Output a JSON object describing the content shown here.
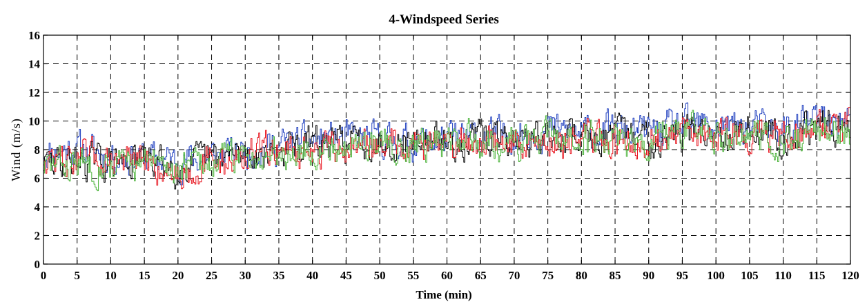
{
  "chart_data": {
    "type": "line",
    "title": "4-Windspeed Series",
    "xlabel": "Time (min)",
    "ylabel": "Wind (m/s)",
    "xlim": [
      0,
      120
    ],
    "ylim": [
      0,
      16
    ],
    "xticks": [
      0,
      5,
      10,
      15,
      20,
      25,
      30,
      35,
      40,
      45,
      50,
      55,
      60,
      65,
      70,
      75,
      80,
      85,
      90,
      95,
      100,
      105,
      110,
      115,
      120
    ],
    "yticks": [
      0,
      2,
      4,
      6,
      8,
      10,
      12,
      14,
      16
    ],
    "grid": true,
    "series": [
      {
        "color": "#1f3fbf",
        "x": [
          0,
          5,
          10,
          15,
          20,
          25,
          30,
          35,
          40,
          45,
          50,
          55,
          60,
          65,
          70,
          75,
          80,
          85,
          90,
          95,
          100,
          105,
          110,
          115,
          120
        ],
        "values": [
          7.9,
          8.1,
          7.6,
          7.4,
          7.2,
          7.5,
          7.9,
          8.3,
          8.6,
          8.8,
          8.7,
          8.5,
          8.7,
          8.9,
          9.1,
          9.4,
          9.2,
          9.3,
          9.2,
          9.6,
          9.7,
          9.5,
          9.4,
          10.1,
          10.0
        ]
      },
      {
        "color": "#000000",
        "x": [
          0,
          5,
          10,
          15,
          20,
          25,
          30,
          35,
          40,
          45,
          50,
          55,
          60,
          65,
          70,
          75,
          80,
          85,
          90,
          95,
          100,
          105,
          110,
          115,
          120
        ],
        "values": [
          7.0,
          7.2,
          7.1,
          7.3,
          6.8,
          7.3,
          7.7,
          7.9,
          8.4,
          8.5,
          8.6,
          8.7,
          8.5,
          8.8,
          8.7,
          8.8,
          9.0,
          9.0,
          8.9,
          9.1,
          9.3,
          9.4,
          9.0,
          9.6,
          9.5
        ]
      },
      {
        "color": "#e8141e",
        "x": [
          0,
          5,
          10,
          15,
          20,
          25,
          30,
          35,
          40,
          45,
          50,
          55,
          60,
          65,
          70,
          75,
          80,
          85,
          90,
          95,
          100,
          105,
          110,
          115,
          120
        ],
        "values": [
          7.4,
          7.3,
          7.4,
          7.0,
          6.4,
          7.1,
          7.5,
          8.3,
          7.7,
          8.1,
          8.5,
          8.6,
          8.4,
          8.6,
          8.4,
          8.6,
          8.8,
          8.7,
          8.7,
          8.9,
          9.2,
          9.0,
          8.9,
          9.7,
          9.6
        ]
      },
      {
        "color": "#4bb33a",
        "x": [
          0,
          5,
          10,
          15,
          20,
          25,
          30,
          35,
          40,
          45,
          50,
          55,
          60,
          65,
          70,
          75,
          80,
          85,
          90,
          95,
          100,
          105,
          110,
          115,
          120
        ],
        "values": [
          6.8,
          7.0,
          7.1,
          6.9,
          6.7,
          7.2,
          7.6,
          7.9,
          8.0,
          8.4,
          8.4,
          8.6,
          8.5,
          8.6,
          8.5,
          8.8,
          8.7,
          8.9,
          8.6,
          9.0,
          9.1,
          8.8,
          8.7,
          9.4,
          9.2
        ]
      }
    ]
  }
}
